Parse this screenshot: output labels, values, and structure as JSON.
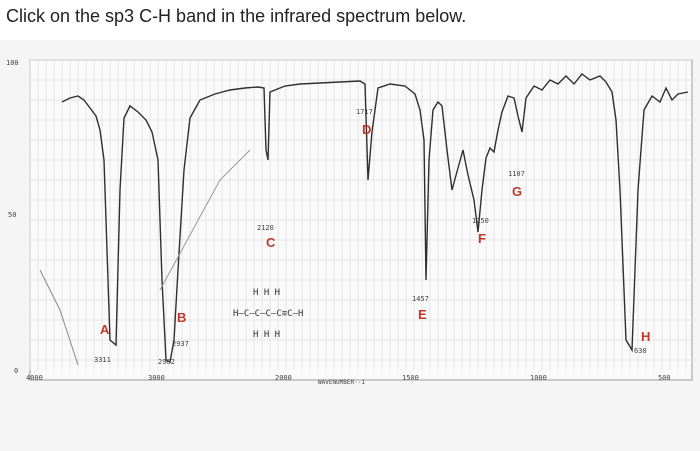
{
  "question": "Click on the sp3 C-H band in the infrared spectrum below.",
  "spectrum": {
    "y_axis_labels": [
      "100",
      "50",
      "0"
    ],
    "x_axis_labels": [
      "4000",
      "3000",
      "2000",
      "1500",
      "1000",
      "500"
    ],
    "x_axis_title": "WAVENUMBER·-1",
    "bands": [
      {
        "letter": "A",
        "wavenumber": "3311"
      },
      {
        "letter": "B",
        "wavenumber": "2937",
        "wavenumber2": "2962"
      },
      {
        "letter": "C",
        "wavenumber": "2120"
      },
      {
        "letter": "D",
        "wavenumber": "1717"
      },
      {
        "letter": "E",
        "wavenumber": "1457"
      },
      {
        "letter": "F",
        "wavenumber": "1250"
      },
      {
        "letter": "G",
        "wavenumber": "1107"
      },
      {
        "letter": "H",
        "wavenumber": "630"
      }
    ],
    "molecule": {
      "top_row": "H  H  H",
      "main_chain": "H–C–C–C–C≡C–H",
      "bottom_row": "H  H  H"
    },
    "colors": {
      "letters": "#c0392b",
      "trace": "#333333",
      "grid": "#d8d8d8"
    }
  }
}
